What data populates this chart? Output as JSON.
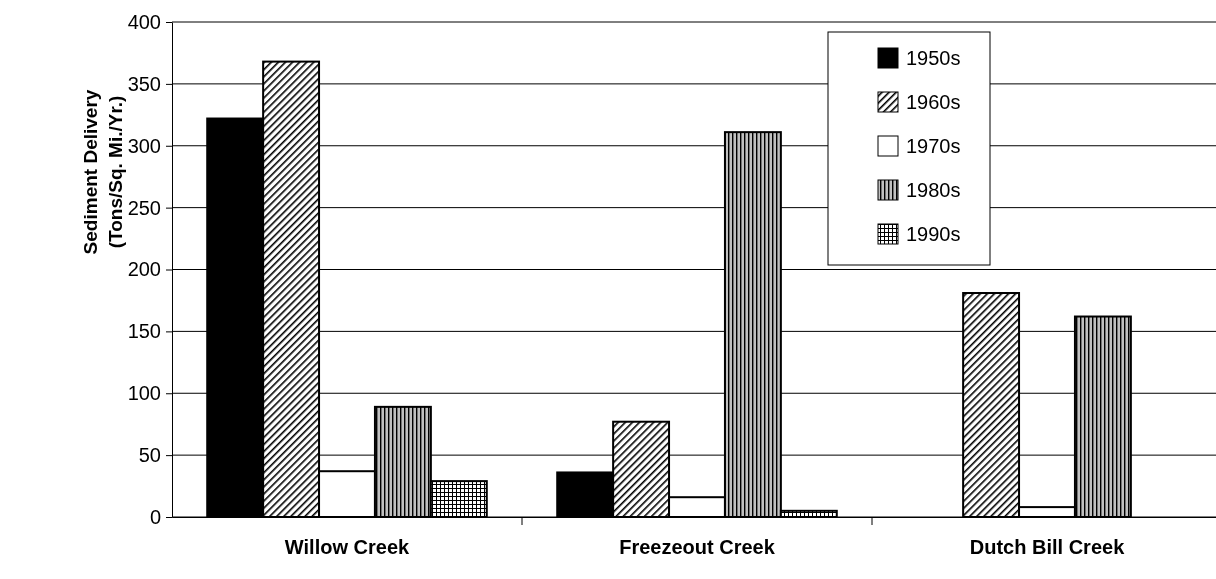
{
  "chart_data": {
    "type": "bar",
    "ylabel": "Sediment Delivery\n(Tons/Sq. Mi./Yr.)",
    "categories": [
      "Willow Creek",
      "Freezeout Creek",
      "Dutch Bill Creek"
    ],
    "series": [
      {
        "name": "1950s",
        "color": "#000000",
        "values": [
          322,
          36,
          null
        ]
      },
      {
        "name": "1960s",
        "color": "#000000",
        "values": [
          368,
          77,
          181
        ]
      },
      {
        "name": "1970s",
        "color": "#ffffff",
        "values": [
          37,
          16,
          8
        ]
      },
      {
        "name": "1980s",
        "color": "#000000",
        "values": [
          89,
          311,
          162
        ]
      },
      {
        "name": "1990s",
        "color": "#000000",
        "values": [
          29,
          5,
          null
        ]
      }
    ],
    "ylim": [
      0,
      400
    ],
    "yticks": [
      0,
      50,
      100,
      150,
      200,
      250,
      300,
      350,
      400
    ],
    "grid": "y",
    "legend": "top right"
  }
}
